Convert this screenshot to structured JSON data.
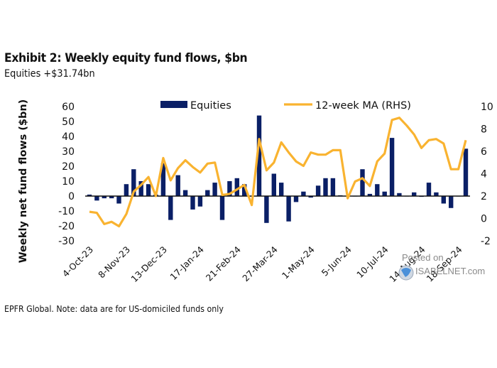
{
  "title": "Exhibit 2: Weekly equity fund flows, $bn",
  "subtitle": "Equities +$31.74bn",
  "footer": "EPFR Global. Note: data are for US-domiciled funds only",
  "watermark": {
    "line1": "Posted on",
    "line2": "ISABELNET.com"
  },
  "colors": {
    "bars": "#0a1f66",
    "line": "#f9b330",
    "axis": "#111111"
  },
  "chart_data": {
    "type": "bar",
    "title": "Exhibit 2: Weekly equity fund flows, $bn",
    "ylabel": "Weekly net fund flows ($bn)",
    "y2label": "",
    "ylim": [
      -30,
      60
    ],
    "y2lim": [
      -2,
      10
    ],
    "yticks": [
      "60",
      "50",
      "40",
      "30",
      "20",
      "10",
      "0",
      "-10",
      "-20",
      "-30"
    ],
    "y2ticks": [
      "10",
      "8",
      "6",
      "4",
      "2",
      "0",
      "-2"
    ],
    "xtick_labels": [
      "4-Oct-23",
      "8-Nov-23",
      "13-Dec-23",
      "17-Jan-24",
      "21-Feb-24",
      "27-Mar-24",
      "1-May-24",
      "5-Jun-24",
      "10-Jul-24",
      "14-Aug-24",
      "18-Sep-24"
    ],
    "xtick_every": 5,
    "legend": {
      "placement": "top",
      "entries": [
        "Equities",
        "12-week MA (RHS)"
      ]
    },
    "series": [
      {
        "name": "Equities",
        "type": "bar",
        "axis": "left",
        "values": [
          1,
          -3,
          -1.5,
          -1.5,
          -5,
          8,
          18,
          10,
          8,
          1,
          22,
          -16,
          14,
          4,
          -9,
          -7,
          4,
          9,
          -16,
          10,
          12,
          8,
          0,
          54,
          -18,
          15,
          9,
          -17,
          -4,
          3,
          -1,
          7,
          12,
          12,
          0.5,
          0,
          0,
          18,
          1.5,
          8,
          3,
          39,
          2,
          0,
          2.5,
          -0.5,
          9,
          2.5,
          -5,
          -8,
          0,
          31.74
        ]
      },
      {
        "name": "12-week MA (RHS)",
        "type": "line",
        "axis": "right",
        "values": [
          0.6,
          0.5,
          -0.5,
          -0.3,
          -0.7,
          0.4,
          2.4,
          3.0,
          3.7,
          2.0,
          5.4,
          3.4,
          4.5,
          5.2,
          4.6,
          4.1,
          4.9,
          5.0,
          2.1,
          2.2,
          2.6,
          3.0,
          1.2,
          7.1,
          4.3,
          5.0,
          6.8,
          5.9,
          5.1,
          4.7,
          5.9,
          5.7,
          5.7,
          6.1,
          6.1,
          1.8,
          3.3,
          3.6,
          2.9,
          5.1,
          5.8,
          8.8,
          9.0,
          8.3,
          7.5,
          6.3,
          7.0,
          7.1,
          6.7,
          4.4,
          4.4,
          7.0
        ]
      }
    ]
  }
}
